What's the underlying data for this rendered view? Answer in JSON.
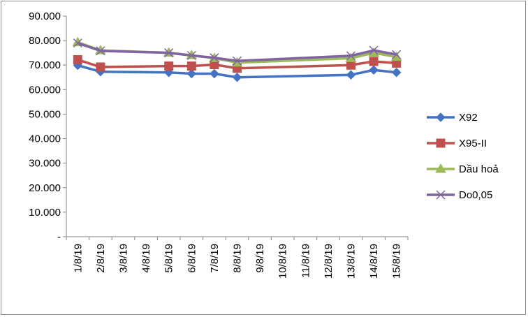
{
  "chart_data": {
    "type": "line",
    "title": "",
    "xlabel": "",
    "ylabel": "",
    "categories": [
      "1/8/19",
      "2/8/19",
      "3/8/19",
      "4/8/19",
      "5/8/19",
      "6/8/19",
      "7/8/19",
      "8/8/19",
      "9/8/19",
      "10/8/19",
      "11/8/19",
      "12/8/19",
      "13/8/19",
      "14/8/19",
      "15/8/19"
    ],
    "y_ticks": [
      "-",
      "10.000",
      "20.000",
      "30.000",
      "40.000",
      "50.000",
      "60.000",
      "70.000",
      "80.000",
      "90.000"
    ],
    "ylim": [
      0,
      90000
    ],
    "grid": false,
    "legend_position": "right",
    "series": [
      {
        "name": "X92",
        "color": "#4472c4",
        "marker": "diamond",
        "points": [
          [
            "1/8/19",
            69900
          ],
          [
            "2/8/19",
            67300
          ],
          [
            "5/8/19",
            67000
          ],
          [
            "6/8/19",
            66500
          ],
          [
            "7/8/19",
            66500
          ],
          [
            "8/8/19",
            65000
          ],
          [
            "13/8/19",
            66000
          ],
          [
            "14/8/19",
            68000
          ],
          [
            "15/8/19",
            67000
          ]
        ]
      },
      {
        "name": "X95-II",
        "color": "#c0504d",
        "marker": "square",
        "points": [
          [
            "1/8/19",
            72200
          ],
          [
            "2/8/19",
            69200
          ],
          [
            "5/8/19",
            69600
          ],
          [
            "6/8/19",
            69600
          ],
          [
            "7/8/19",
            70200
          ],
          [
            "8/8/19",
            68700
          ],
          [
            "13/8/19",
            70000
          ],
          [
            "14/8/19",
            71500
          ],
          [
            "15/8/19",
            70800
          ]
        ]
      },
      {
        "name": "Dầu hoả",
        "color": "#9bbb59",
        "marker": "triangle",
        "points": [
          [
            "1/8/19",
            79300
          ],
          [
            "2/8/19",
            76000
          ],
          [
            "5/8/19",
            75000
          ],
          [
            "6/8/19",
            74000
          ],
          [
            "7/8/19",
            72800
          ],
          [
            "8/8/19",
            71000
          ],
          [
            "13/8/19",
            72800
          ],
          [
            "14/8/19",
            75000
          ],
          [
            "15/8/19",
            73300
          ]
        ]
      },
      {
        "name": "Do0,05",
        "color": "#8064a2",
        "marker": "x",
        "points": [
          [
            "1/8/19",
            79000
          ],
          [
            "2/8/19",
            75800
          ],
          [
            "5/8/19",
            75000
          ],
          [
            "6/8/19",
            73900
          ],
          [
            "7/8/19",
            73000
          ],
          [
            "8/8/19",
            71700
          ],
          [
            "13/8/19",
            73800
          ],
          [
            "14/8/19",
            76000
          ],
          [
            "15/8/19",
            74300
          ]
        ]
      }
    ]
  }
}
